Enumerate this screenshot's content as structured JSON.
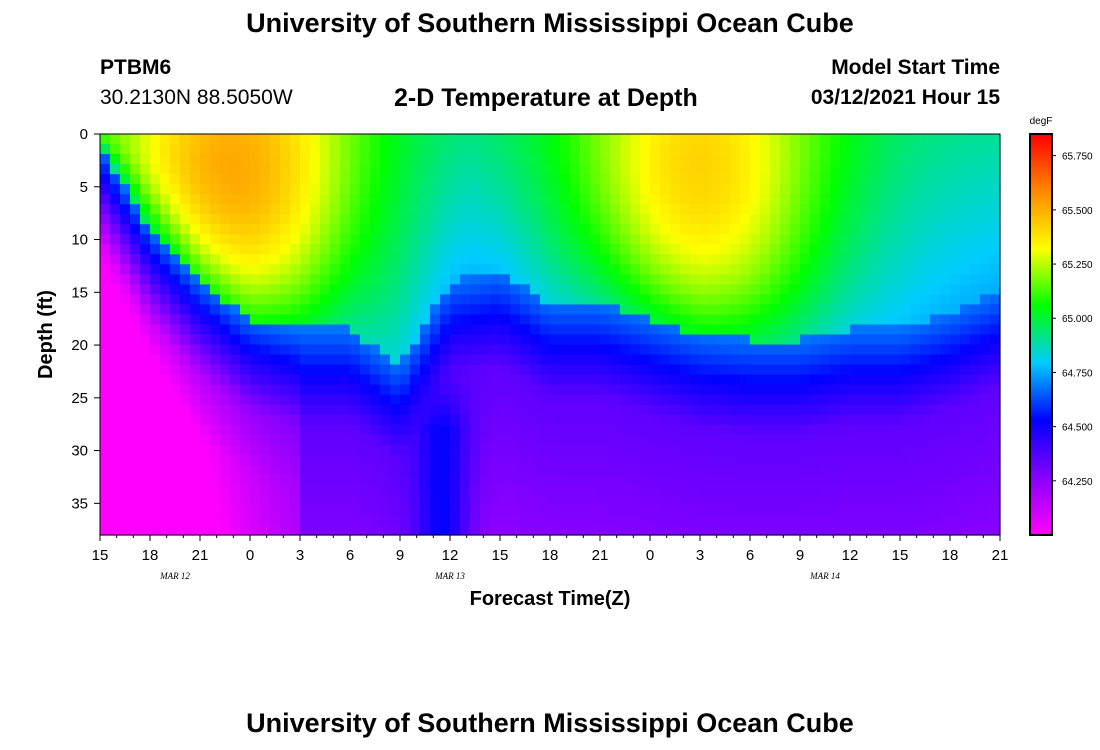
{
  "header": {
    "main_title": "University of Southern Mississippi Ocean Cube",
    "station_id": "PTBM6",
    "station_coords": "30.2130N 88.5050W",
    "plot_title": "2-D Temperature at Depth",
    "start_label": "Model Start Time",
    "start_value": "03/12/2021 Hour 15"
  },
  "footer": {
    "title": "University of Southern Mississippi Ocean Cube"
  },
  "chart_data": {
    "type": "heatmap",
    "title": "2-D Temperature at Depth",
    "xlabel": "Forecast Time(Z)",
    "ylabel": "Depth (ft)",
    "x_tick_labels": [
      "15",
      "18",
      "21",
      "0",
      "3",
      "6",
      "9",
      "12",
      "15",
      "18",
      "21",
      "0",
      "3",
      "6",
      "9",
      "12",
      "15",
      "18",
      "21"
    ],
    "x_hours": [
      0,
      54
    ],
    "date_labels": [
      {
        "text": "MAR 12",
        "hour": 4.5
      },
      {
        "text": "MAR 13",
        "hour": 21
      },
      {
        "text": "MAR 14",
        "hour": 43.5
      }
    ],
    "y_ticks": [
      0,
      5,
      10,
      15,
      20,
      25,
      30,
      35
    ],
    "ylim": [
      38,
      0
    ],
    "colorbar": {
      "unit": "degF",
      "ticks": [
        "65.750",
        "65.500",
        "65.250",
        "65.000",
        "64.750",
        "64.500",
        "64.250"
      ],
      "range": [
        64.0,
        65.85
      ],
      "colors": [
        "#ff00ff",
        "#8800ff",
        "#0000ff",
        "#00ccff",
        "#00ff00",
        "#ffff00",
        "#ff8800",
        "#ff0000"
      ]
    },
    "isotherm_depth_ft": {
      "hour": [
        0,
        3,
        6,
        9,
        12,
        15,
        18,
        21,
        24,
        27,
        30,
        33,
        36,
        39,
        42,
        45,
        48,
        51,
        54
      ],
      "depth": [
        1,
        9,
        14,
        17.5,
        18.5,
        18.5,
        22,
        14,
        13,
        16,
        16,
        17.5,
        19,
        19.5,
        19.5,
        18.5,
        18.5,
        17,
        15
      ]
    },
    "warm_core": [
      {
        "hour": 8,
        "depth_ft": 5,
        "value": 65.55
      },
      {
        "hour": 36,
        "depth_ft": 5,
        "value": 65.45
      }
    ],
    "trough": {
      "hour": 20.5,
      "depth_range_ft": [
        22,
        38
      ]
    }
  }
}
